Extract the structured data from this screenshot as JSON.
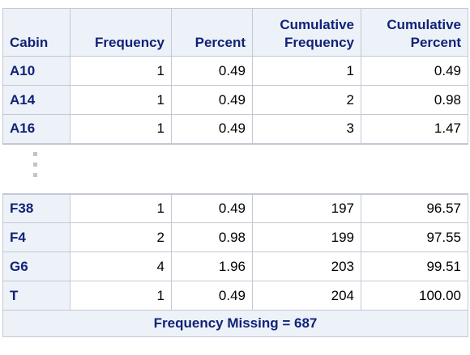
{
  "table": {
    "headers": {
      "cabin": "Cabin",
      "frequency": "Frequency",
      "percent": "Percent",
      "cum_freq_line1": "Cumulative",
      "cum_freq_line2": "Frequency",
      "cum_pct_line1": "Cumulative",
      "cum_pct_line2": "Percent"
    },
    "rows_top": [
      {
        "cabin": "A10",
        "frequency": "1",
        "percent": "0.49",
        "cum_freq": "1",
        "cum_pct": "0.49"
      },
      {
        "cabin": "A14",
        "frequency": "1",
        "percent": "0.49",
        "cum_freq": "2",
        "cum_pct": "0.98"
      },
      {
        "cabin": "A16",
        "frequency": "1",
        "percent": "0.49",
        "cum_freq": "3",
        "cum_pct": "1.47"
      }
    ],
    "rows_bottom": [
      {
        "cabin": "F38",
        "frequency": "1",
        "percent": "0.49",
        "cum_freq": "197",
        "cum_pct": "96.57"
      },
      {
        "cabin": "F4",
        "frequency": "2",
        "percent": "0.98",
        "cum_freq": "199",
        "cum_pct": "97.55"
      },
      {
        "cabin": "G6",
        "frequency": "4",
        "percent": "1.96",
        "cum_freq": "203",
        "cum_pct": "99.51"
      },
      {
        "cabin": "T",
        "frequency": "1",
        "percent": "0.49",
        "cum_freq": "204",
        "cum_pct": "100.00"
      }
    ],
    "footer": "Frequency Missing = 687"
  }
}
